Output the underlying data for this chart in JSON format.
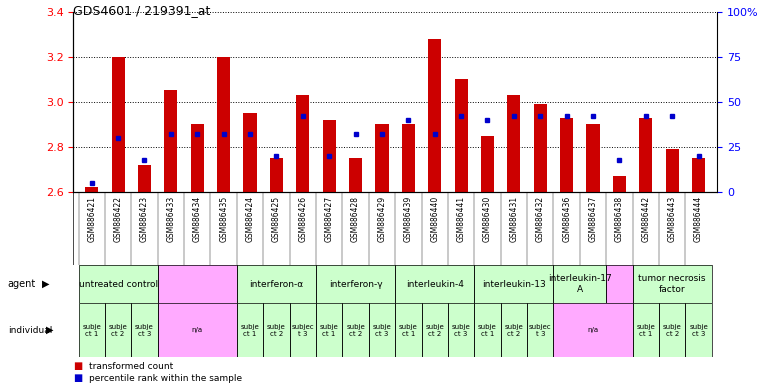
{
  "title": "GDS4601 / 219391_at",
  "samples": [
    "GSM886421",
    "GSM886422",
    "GSM886423",
    "GSM886433",
    "GSM886434",
    "GSM886435",
    "GSM886424",
    "GSM886425",
    "GSM886426",
    "GSM886427",
    "GSM886428",
    "GSM886429",
    "GSM886439",
    "GSM886440",
    "GSM886441",
    "GSM886430",
    "GSM886431",
    "GSM886432",
    "GSM886436",
    "GSM886437",
    "GSM886438",
    "GSM886442",
    "GSM886443",
    "GSM886444"
  ],
  "transformed_count": [
    2.62,
    3.2,
    2.72,
    3.05,
    2.9,
    3.2,
    2.95,
    2.75,
    3.03,
    2.92,
    2.75,
    2.9,
    2.9,
    3.28,
    3.1,
    2.85,
    3.03,
    2.99,
    2.93,
    2.9,
    2.67,
    2.93,
    2.79,
    2.75
  ],
  "percentile_rank": [
    5,
    30,
    18,
    32,
    32,
    32,
    32,
    20,
    42,
    20,
    32,
    32,
    40,
    32,
    42,
    40,
    42,
    42,
    42,
    42,
    18,
    42,
    42,
    20
  ],
  "ylim_left": [
    2.6,
    3.4
  ],
  "ylim_right": [
    0,
    100
  ],
  "yticks_left": [
    2.6,
    2.8,
    3.0,
    3.2,
    3.4
  ],
  "yticks_right": [
    0,
    25,
    50,
    75,
    100
  ],
  "ytick_labels_right": [
    "0",
    "25",
    "50",
    "75",
    "100%"
  ],
  "bar_color_red": "#cc0000",
  "bar_color_blue": "#0000cc",
  "baseline": 2.6,
  "background_color": "#ffffff",
  "bar_width": 0.5,
  "xtick_bg": "#d8d8d8",
  "agent_definitions": [
    {
      "label": "untreated control",
      "cols": [
        0,
        1,
        2
      ],
      "color": "#ccffcc"
    },
    {
      "label": "",
      "cols": [
        3,
        4,
        5
      ],
      "color": "#ffaaff"
    },
    {
      "label": "interferon-α",
      "cols": [
        6,
        7,
        8
      ],
      "color": "#ccffcc"
    },
    {
      "label": "interferon-γ",
      "cols": [
        9,
        10,
        11
      ],
      "color": "#ccffcc"
    },
    {
      "label": "interleukin-4",
      "cols": [
        12,
        13,
        14
      ],
      "color": "#ccffcc"
    },
    {
      "label": "interleukin-13",
      "cols": [
        15,
        16,
        17
      ],
      "color": "#ccffcc"
    },
    {
      "label": "interleukin-17\nA",
      "cols": [
        18,
        19
      ],
      "color": "#ccffcc"
    },
    {
      "label": "",
      "cols": [
        20
      ],
      "color": "#ffaaff"
    },
    {
      "label": "tumor necrosis\nfactor",
      "cols": [
        21,
        22,
        23
      ],
      "color": "#ccffcc"
    }
  ],
  "individual_definitions": [
    {
      "label": "subje\nct 1",
      "cols": [
        0
      ],
      "color": "#ccffcc"
    },
    {
      "label": "subje\nct 2",
      "cols": [
        1
      ],
      "color": "#ccffcc"
    },
    {
      "label": "subje\nct 3",
      "cols": [
        2
      ],
      "color": "#ccffcc"
    },
    {
      "label": "n/a",
      "cols": [
        3,
        4,
        5
      ],
      "color": "#ffaaff"
    },
    {
      "label": "subje\nct 1",
      "cols": [
        6
      ],
      "color": "#ccffcc"
    },
    {
      "label": "subje\nct 2",
      "cols": [
        7
      ],
      "color": "#ccffcc"
    },
    {
      "label": "subjec\nt 3",
      "cols": [
        8
      ],
      "color": "#ccffcc"
    },
    {
      "label": "subje\nct 1",
      "cols": [
        9
      ],
      "color": "#ccffcc"
    },
    {
      "label": "subje\nct 2",
      "cols": [
        10
      ],
      "color": "#ccffcc"
    },
    {
      "label": "subje\nct 3",
      "cols": [
        11
      ],
      "color": "#ccffcc"
    },
    {
      "label": "subje\nct 1",
      "cols": [
        12
      ],
      "color": "#ccffcc"
    },
    {
      "label": "subje\nct 2",
      "cols": [
        13
      ],
      "color": "#ccffcc"
    },
    {
      "label": "subje\nct 3",
      "cols": [
        14
      ],
      "color": "#ccffcc"
    },
    {
      "label": "subje\nct 1",
      "cols": [
        15
      ],
      "color": "#ccffcc"
    },
    {
      "label": "subje\nct 2",
      "cols": [
        16
      ],
      "color": "#ccffcc"
    },
    {
      "label": "subjec\nt 3",
      "cols": [
        17
      ],
      "color": "#ccffcc"
    },
    {
      "label": "n/a",
      "cols": [
        18,
        19,
        20
      ],
      "color": "#ffaaff"
    },
    {
      "label": "subje\nct 1",
      "cols": [
        21
      ],
      "color": "#ccffcc"
    },
    {
      "label": "subje\nct 2",
      "cols": [
        22
      ],
      "color": "#ccffcc"
    },
    {
      "label": "subje\nct 3",
      "cols": [
        23
      ],
      "color": "#ccffcc"
    }
  ]
}
